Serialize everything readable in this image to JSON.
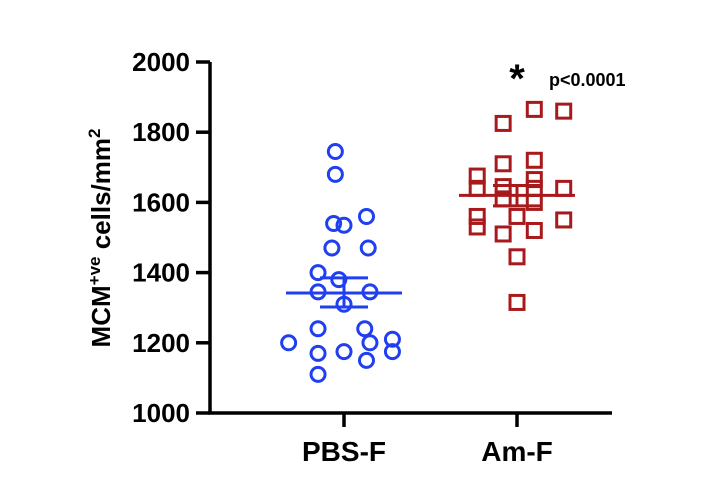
{
  "chart_data": {
    "type": "scatter",
    "ylabel_main": "MCM",
    "ylabel_sup": "+ve",
    "ylabel_rest": " cells/mm",
    "ylabel_sup2": "2",
    "ylim": [
      1000,
      2000
    ],
    "yticks": [
      "1000",
      "1200",
      "1400",
      "1600",
      "1800",
      "2000"
    ],
    "categories": [
      "PBS-F",
      "Am-F"
    ],
    "series": [
      {
        "category": "PBS-F",
        "color": "#1f3ff0",
        "marker": "circle",
        "mean": 1342,
        "sem_low": 1302,
        "sem_high": 1385,
        "points": [
          {
            "dx": -0.05,
            "y": 1745
          },
          {
            "dx": -0.05,
            "y": 1680
          },
          {
            "dx": -0.06,
            "y": 1540
          },
          {
            "dx": 0.13,
            "y": 1560
          },
          {
            "dx": 0.0,
            "y": 1535
          },
          {
            "dx": -0.07,
            "y": 1470
          },
          {
            "dx": 0.14,
            "y": 1470
          },
          {
            "dx": -0.15,
            "y": 1400
          },
          {
            "dx": -0.03,
            "y": 1380
          },
          {
            "dx": -0.15,
            "y": 1345
          },
          {
            "dx": 0.15,
            "y": 1345
          },
          {
            "dx": 0.0,
            "y": 1310
          },
          {
            "dx": -0.15,
            "y": 1240
          },
          {
            "dx": 0.12,
            "y": 1240
          },
          {
            "dx": -0.32,
            "y": 1200
          },
          {
            "dx": 0.15,
            "y": 1200
          },
          {
            "dx": 0.28,
            "y": 1210
          },
          {
            "dx": 0.28,
            "y": 1175
          },
          {
            "dx": -0.15,
            "y": 1170
          },
          {
            "dx": 0.0,
            "y": 1175
          },
          {
            "dx": 0.13,
            "y": 1150
          },
          {
            "dx": -0.15,
            "y": 1110
          }
        ]
      },
      {
        "category": "Am-F",
        "color": "#a8191c",
        "marker": "square",
        "mean": 1620,
        "sem_low": 1590,
        "sem_high": 1648,
        "points": [
          {
            "dx": 0.1,
            "y": 1865
          },
          {
            "dx": 0.27,
            "y": 1860
          },
          {
            "dx": -0.08,
            "y": 1825
          },
          {
            "dx": 0.1,
            "y": 1720
          },
          {
            "dx": -0.08,
            "y": 1710
          },
          {
            "dx": -0.23,
            "y": 1675
          },
          {
            "dx": 0.1,
            "y": 1665
          },
          {
            "dx": -0.23,
            "y": 1640
          },
          {
            "dx": -0.08,
            "y": 1645
          },
          {
            "dx": 0.1,
            "y": 1640
          },
          {
            "dx": 0.27,
            "y": 1640
          },
          {
            "dx": -0.08,
            "y": 1610
          },
          {
            "dx": 0.1,
            "y": 1600
          },
          {
            "dx": -0.23,
            "y": 1560
          },
          {
            "dx": 0.0,
            "y": 1560
          },
          {
            "dx": 0.27,
            "y": 1550
          },
          {
            "dx": -0.23,
            "y": 1530
          },
          {
            "dx": -0.08,
            "y": 1510
          },
          {
            "dx": 0.1,
            "y": 1520
          },
          {
            "dx": 0.0,
            "y": 1445
          },
          {
            "dx": 0.0,
            "y": 1315
          }
        ]
      }
    ],
    "annotation": {
      "star": "*",
      "p": "p<0.0001"
    }
  }
}
